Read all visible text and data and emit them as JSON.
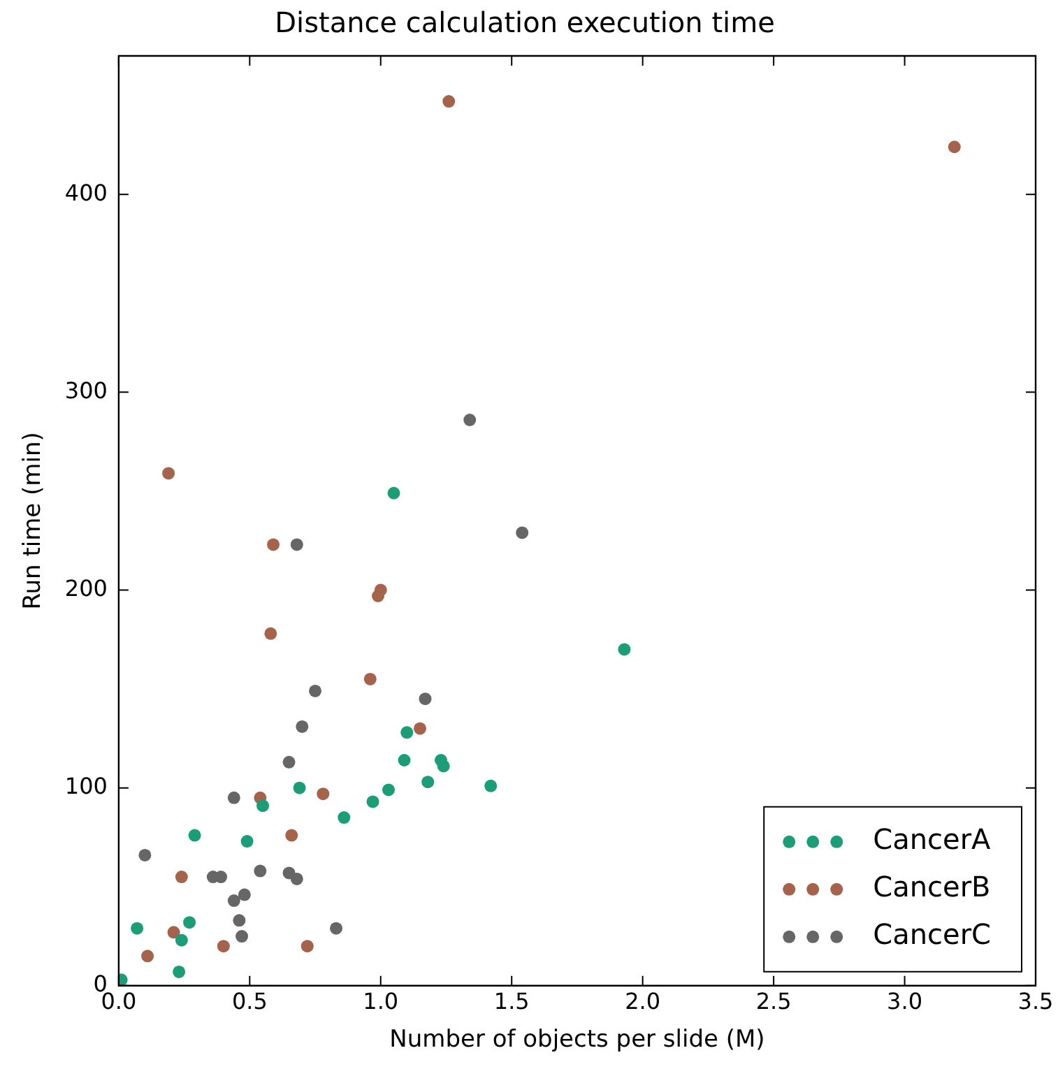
{
  "chart_data": {
    "type": "scatter",
    "title": "Distance calculation execution time",
    "xlabel": "Number of objects per slide (M)",
    "ylabel": "Run time (min)",
    "xlim": [
      0,
      3.5
    ],
    "xticks": [
      {
        "value": 0,
        "label": "0.0"
      },
      {
        "value": 0.5,
        "label": "0.5"
      },
      {
        "value": 1,
        "label": "1.0"
      },
      {
        "value": 1.5,
        "label": "1.5"
      },
      {
        "value": 2,
        "label": "2.0"
      },
      {
        "value": 2.5,
        "label": "2.5"
      },
      {
        "value": 3,
        "label": "3.0"
      },
      {
        "value": 3.5,
        "label": "3.5"
      }
    ],
    "ylim": [
      0,
      470
    ],
    "yticks": [
      0,
      100,
      200,
      300,
      400
    ],
    "grid": false,
    "legend": "bottom right",
    "marker": "circle",
    "series": [
      {
        "name": "CancerA",
        "color": "#1b9e77",
        "x": [
          0.01,
          0.07,
          0.23,
          0.24,
          0.27,
          0.29,
          0.49,
          0.55,
          0.69,
          0.86,
          0.97,
          1.03,
          1.05,
          1.09,
          1.1,
          1.18,
          1.23,
          1.24,
          1.42,
          1.93
        ],
        "values": [
          3,
          29,
          7,
          23,
          32,
          76,
          73,
          91,
          100,
          85,
          93,
          99,
          249,
          114,
          128,
          103,
          114,
          111,
          101,
          170
        ]
      },
      {
        "name": "CancerB",
        "color": "#a6634b",
        "x": [
          0.11,
          0.19,
          0.21,
          0.24,
          0.4,
          0.54,
          0.59,
          0.58,
          0.66,
          0.72,
          0.78,
          0.96,
          0.99,
          1.0,
          1.15,
          1.26,
          3.19
        ],
        "values": [
          15,
          259,
          27,
          55,
          20,
          95,
          223,
          178,
          76,
          20,
          97,
          155,
          197,
          200,
          130,
          447,
          424
        ]
      },
      {
        "name": "CancerC",
        "color": "#666666",
        "x": [
          0.1,
          0.36,
          0.39,
          0.44,
          0.44,
          0.48,
          0.46,
          0.47,
          0.54,
          0.65,
          0.68,
          0.65,
          0.7,
          0.75,
          0.83,
          1.17,
          0.68,
          1.54,
          1.34
        ],
        "values": [
          66,
          55,
          55,
          95,
          43,
          46,
          33,
          25,
          58,
          57,
          54,
          113,
          131,
          149,
          29,
          145,
          223,
          229,
          286
        ]
      }
    ]
  }
}
